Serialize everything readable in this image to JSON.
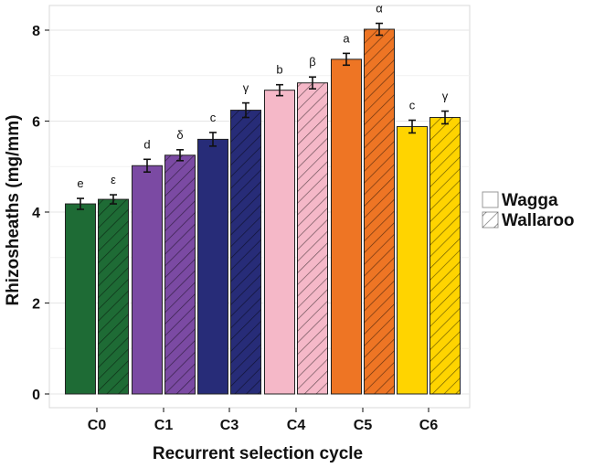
{
  "chart_data": {
    "type": "bar",
    "xlabel": "Recurrent selection cycle",
    "ylabel": "Rhizosheaths (mg/mm)",
    "ylim": [
      0,
      8.4
    ],
    "yticks": [
      0,
      2,
      4,
      6,
      8
    ],
    "categories": [
      "C0",
      "C1",
      "C3",
      "C4",
      "C5",
      "C6"
    ],
    "category_colors": [
      "#1e6b35",
      "#7b4aa3",
      "#272c78",
      "#f5b8c8",
      "#ee7524",
      "#ffd400"
    ],
    "series": [
      {
        "name": "Wagga",
        "pattern": "solid",
        "values": [
          4.18,
          5.02,
          5.6,
          6.68,
          7.36,
          5.88
        ],
        "errors": [
          0.12,
          0.14,
          0.15,
          0.12,
          0.13,
          0.14
        ],
        "labels": [
          "e",
          "d",
          "c",
          "b",
          "a",
          "c"
        ]
      },
      {
        "name": "Wallaroo",
        "pattern": "hatched",
        "values": [
          4.28,
          5.25,
          6.24,
          6.84,
          8.02,
          6.08
        ],
        "errors": [
          0.1,
          0.12,
          0.16,
          0.13,
          0.13,
          0.14
        ],
        "labels": [
          "ε",
          "δ",
          "γ",
          "β",
          "α",
          "γ"
        ]
      }
    ],
    "legend": {
      "position": "right",
      "entries": [
        "Wagga",
        "Wallaroo"
      ]
    }
  }
}
